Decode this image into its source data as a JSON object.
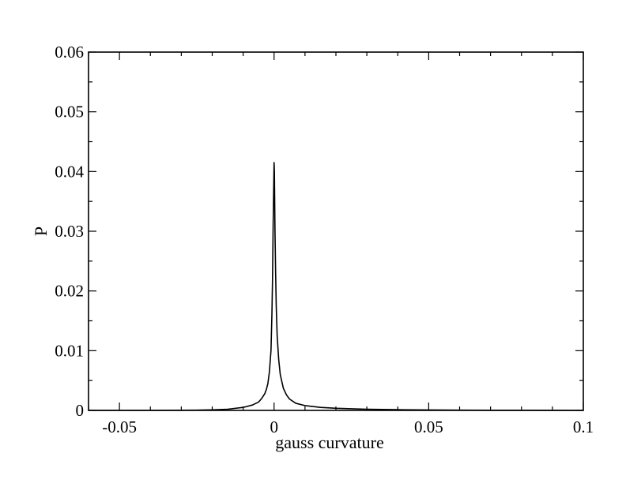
{
  "chart_data": {
    "type": "line",
    "title": "",
    "xlabel": "gauss curvature",
    "ylabel": "P",
    "xlim": [
      -0.06,
      0.1
    ],
    "ylim": [
      0,
      0.06
    ],
    "x_ticks": [
      -0.05,
      0,
      0.05,
      0.1
    ],
    "x_tick_labels": [
      "-0.05",
      "0",
      "0.05",
      "0.1"
    ],
    "y_ticks": [
      0,
      0.01,
      0.02,
      0.03,
      0.04,
      0.05,
      0.06
    ],
    "y_tick_labels": [
      "0",
      "0.01",
      "0.02",
      "0.03",
      "0.04",
      "0.05",
      "0.06"
    ],
    "grid": false,
    "series": [
      {
        "color": "#000000",
        "points": [
          [
            -0.06,
            0.0
          ],
          [
            -0.04,
            0.0
          ],
          [
            -0.03,
            2e-05
          ],
          [
            -0.025,
            5e-05
          ],
          [
            -0.02,
            0.0001
          ],
          [
            -0.015,
            0.0002
          ],
          [
            -0.01,
            0.0005
          ],
          [
            -0.007,
            0.0009
          ],
          [
            -0.005,
            0.0014
          ],
          [
            -0.004,
            0.002
          ],
          [
            -0.003,
            0.0028
          ],
          [
            -0.0025,
            0.0035
          ],
          [
            -0.002,
            0.0045
          ],
          [
            -0.0015,
            0.0065
          ],
          [
            -0.001,
            0.01
          ],
          [
            -0.0007,
            0.016
          ],
          [
            -0.0005,
            0.022
          ],
          [
            -0.0003,
            0.031
          ],
          [
            -0.0001,
            0.038
          ],
          [
            0.0,
            0.0415
          ],
          [
            0.0001,
            0.04
          ],
          [
            0.0003,
            0.03
          ],
          [
            0.0005,
            0.023
          ],
          [
            0.0007,
            0.0175
          ],
          [
            0.001,
            0.0125
          ],
          [
            0.0015,
            0.0085
          ],
          [
            0.002,
            0.006
          ],
          [
            0.003,
            0.0037
          ],
          [
            0.004,
            0.0026
          ],
          [
            0.005,
            0.0019
          ],
          [
            0.007,
            0.0012
          ],
          [
            0.01,
            0.0008
          ],
          [
            0.015,
            0.0005
          ],
          [
            0.02,
            0.00035
          ],
          [
            0.03,
            0.0002
          ],
          [
            0.04,
            0.00012
          ],
          [
            0.05,
            8e-05
          ],
          [
            0.06,
            5e-05
          ],
          [
            0.07,
            3e-05
          ],
          [
            0.08,
            2e-05
          ],
          [
            0.09,
            1e-05
          ],
          [
            0.1,
            0.0
          ]
        ]
      }
    ]
  }
}
